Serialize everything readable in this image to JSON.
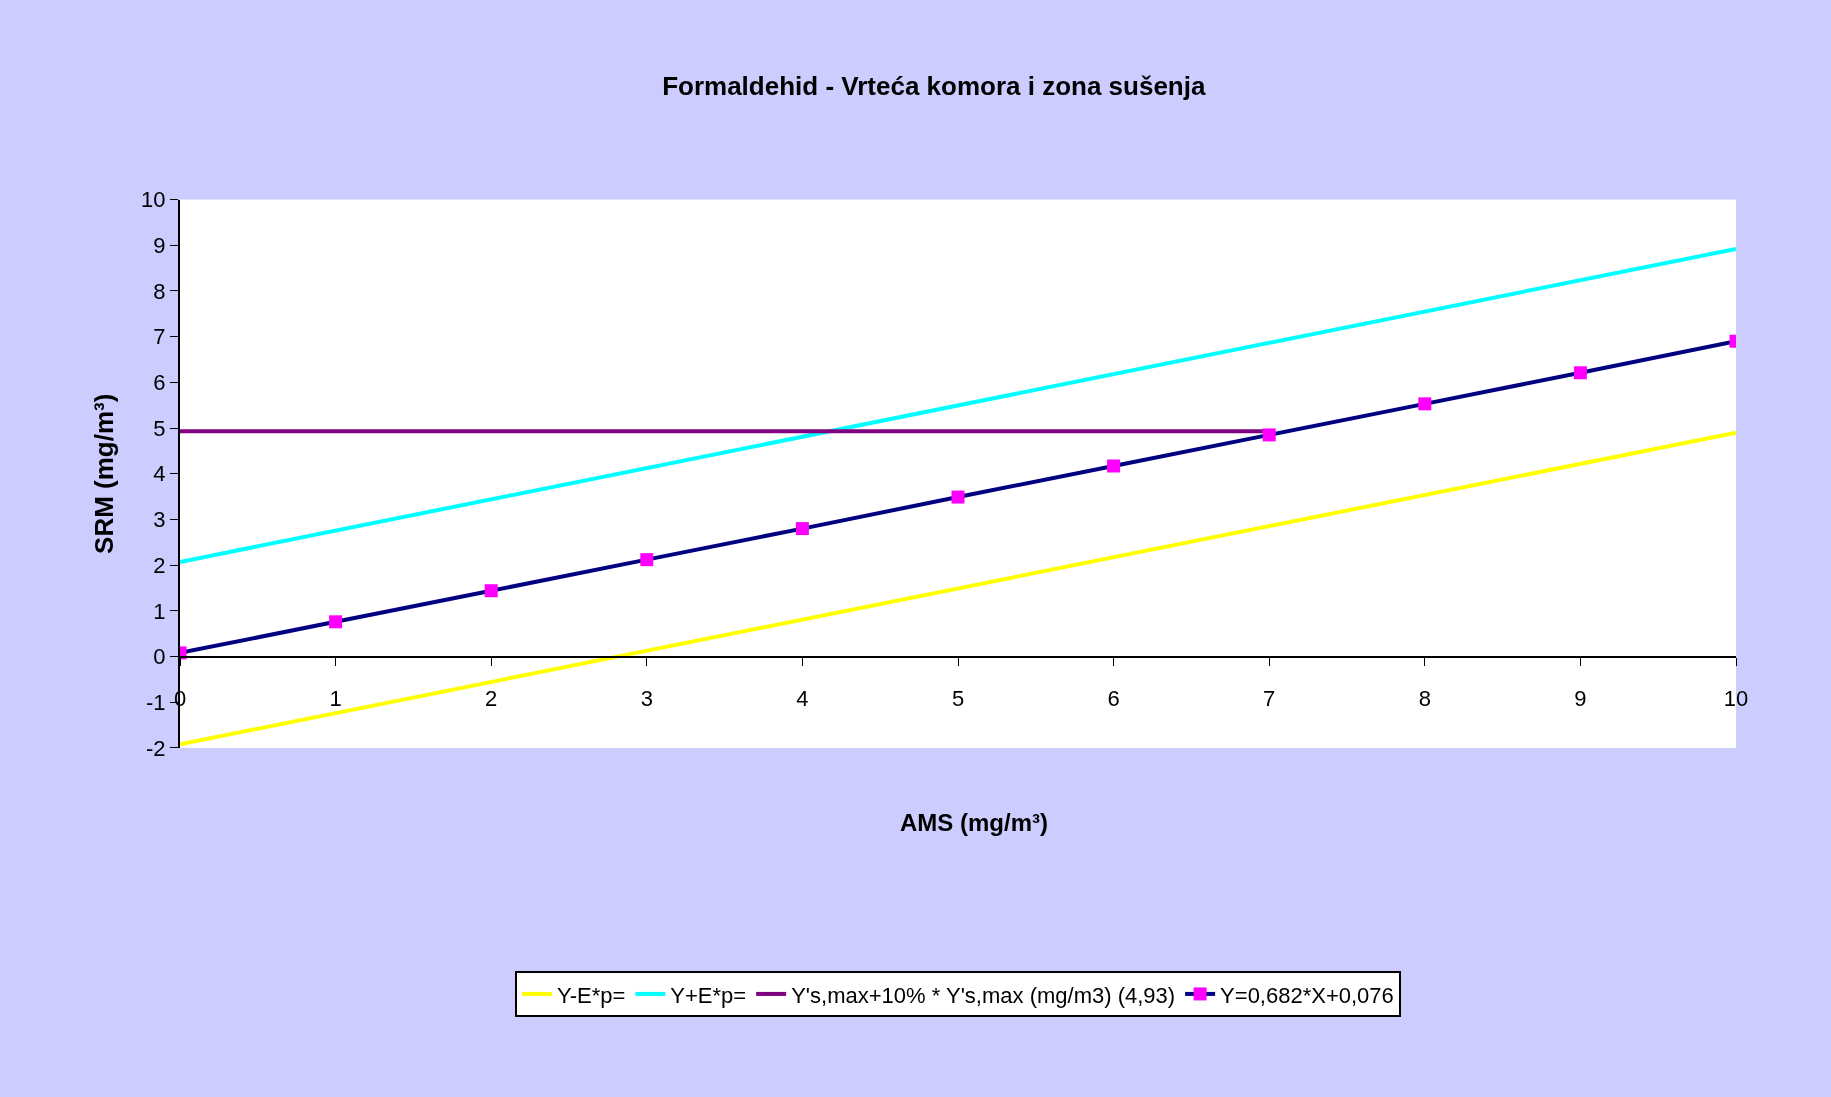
{
  "chart_data": {
    "type": "line",
    "title": "Formaldehid - Vrteća komora i zona sušenja",
    "xlabel": "AMS (mg/m³)",
    "ylabel": "SRM (mg/m³)",
    "xlim": [
      0,
      10
    ],
    "xticks": [
      0,
      1,
      2,
      3,
      4,
      5,
      6,
      7,
      8,
      9,
      10
    ],
    "ylim": [
      -2,
      10
    ],
    "yticks": [
      -2,
      -1,
      0,
      1,
      2,
      3,
      4,
      5,
      6,
      7,
      8,
      9,
      10
    ],
    "grid": false,
    "legend": "bottom",
    "line_style": "solid",
    "series": [
      {
        "name": "Y-E*p=",
        "color": "#ffff00",
        "x": [
          0,
          10
        ],
        "values": [
          -1.92,
          4.9
        ],
        "marker": "none"
      },
      {
        "name": "Y+E*p=",
        "color": "#00ffff",
        "x": [
          0,
          10
        ],
        "values": [
          2.07,
          8.92
        ],
        "marker": "none"
      },
      {
        "name": "Y's,max+10% * Y's,max (mg/m3) (4,93)",
        "color": "#800080",
        "x": [
          0,
          7
        ],
        "values": [
          4.93,
          4.93
        ],
        "marker": "none"
      },
      {
        "name": "Y=0,682*X+0,076",
        "color": "#000080",
        "colors": [
          "#ff00ff",
          "#ff00ff",
          "#ff00ff",
          "#ff00ff",
          "#ff00ff",
          "#ff00ff",
          "#ff00ff",
          "#ff00ff",
          "#ff00ff",
          "#ff00ff",
          "#ff00ff"
        ],
        "x": [
          0,
          1,
          2,
          3,
          4,
          5,
          6,
          7,
          8,
          9,
          10
        ],
        "values": [
          0.08,
          0.76,
          1.44,
          2.12,
          2.8,
          3.49,
          4.17,
          4.85,
          5.53,
          6.21,
          6.9
        ],
        "marker": "square"
      }
    ]
  }
}
